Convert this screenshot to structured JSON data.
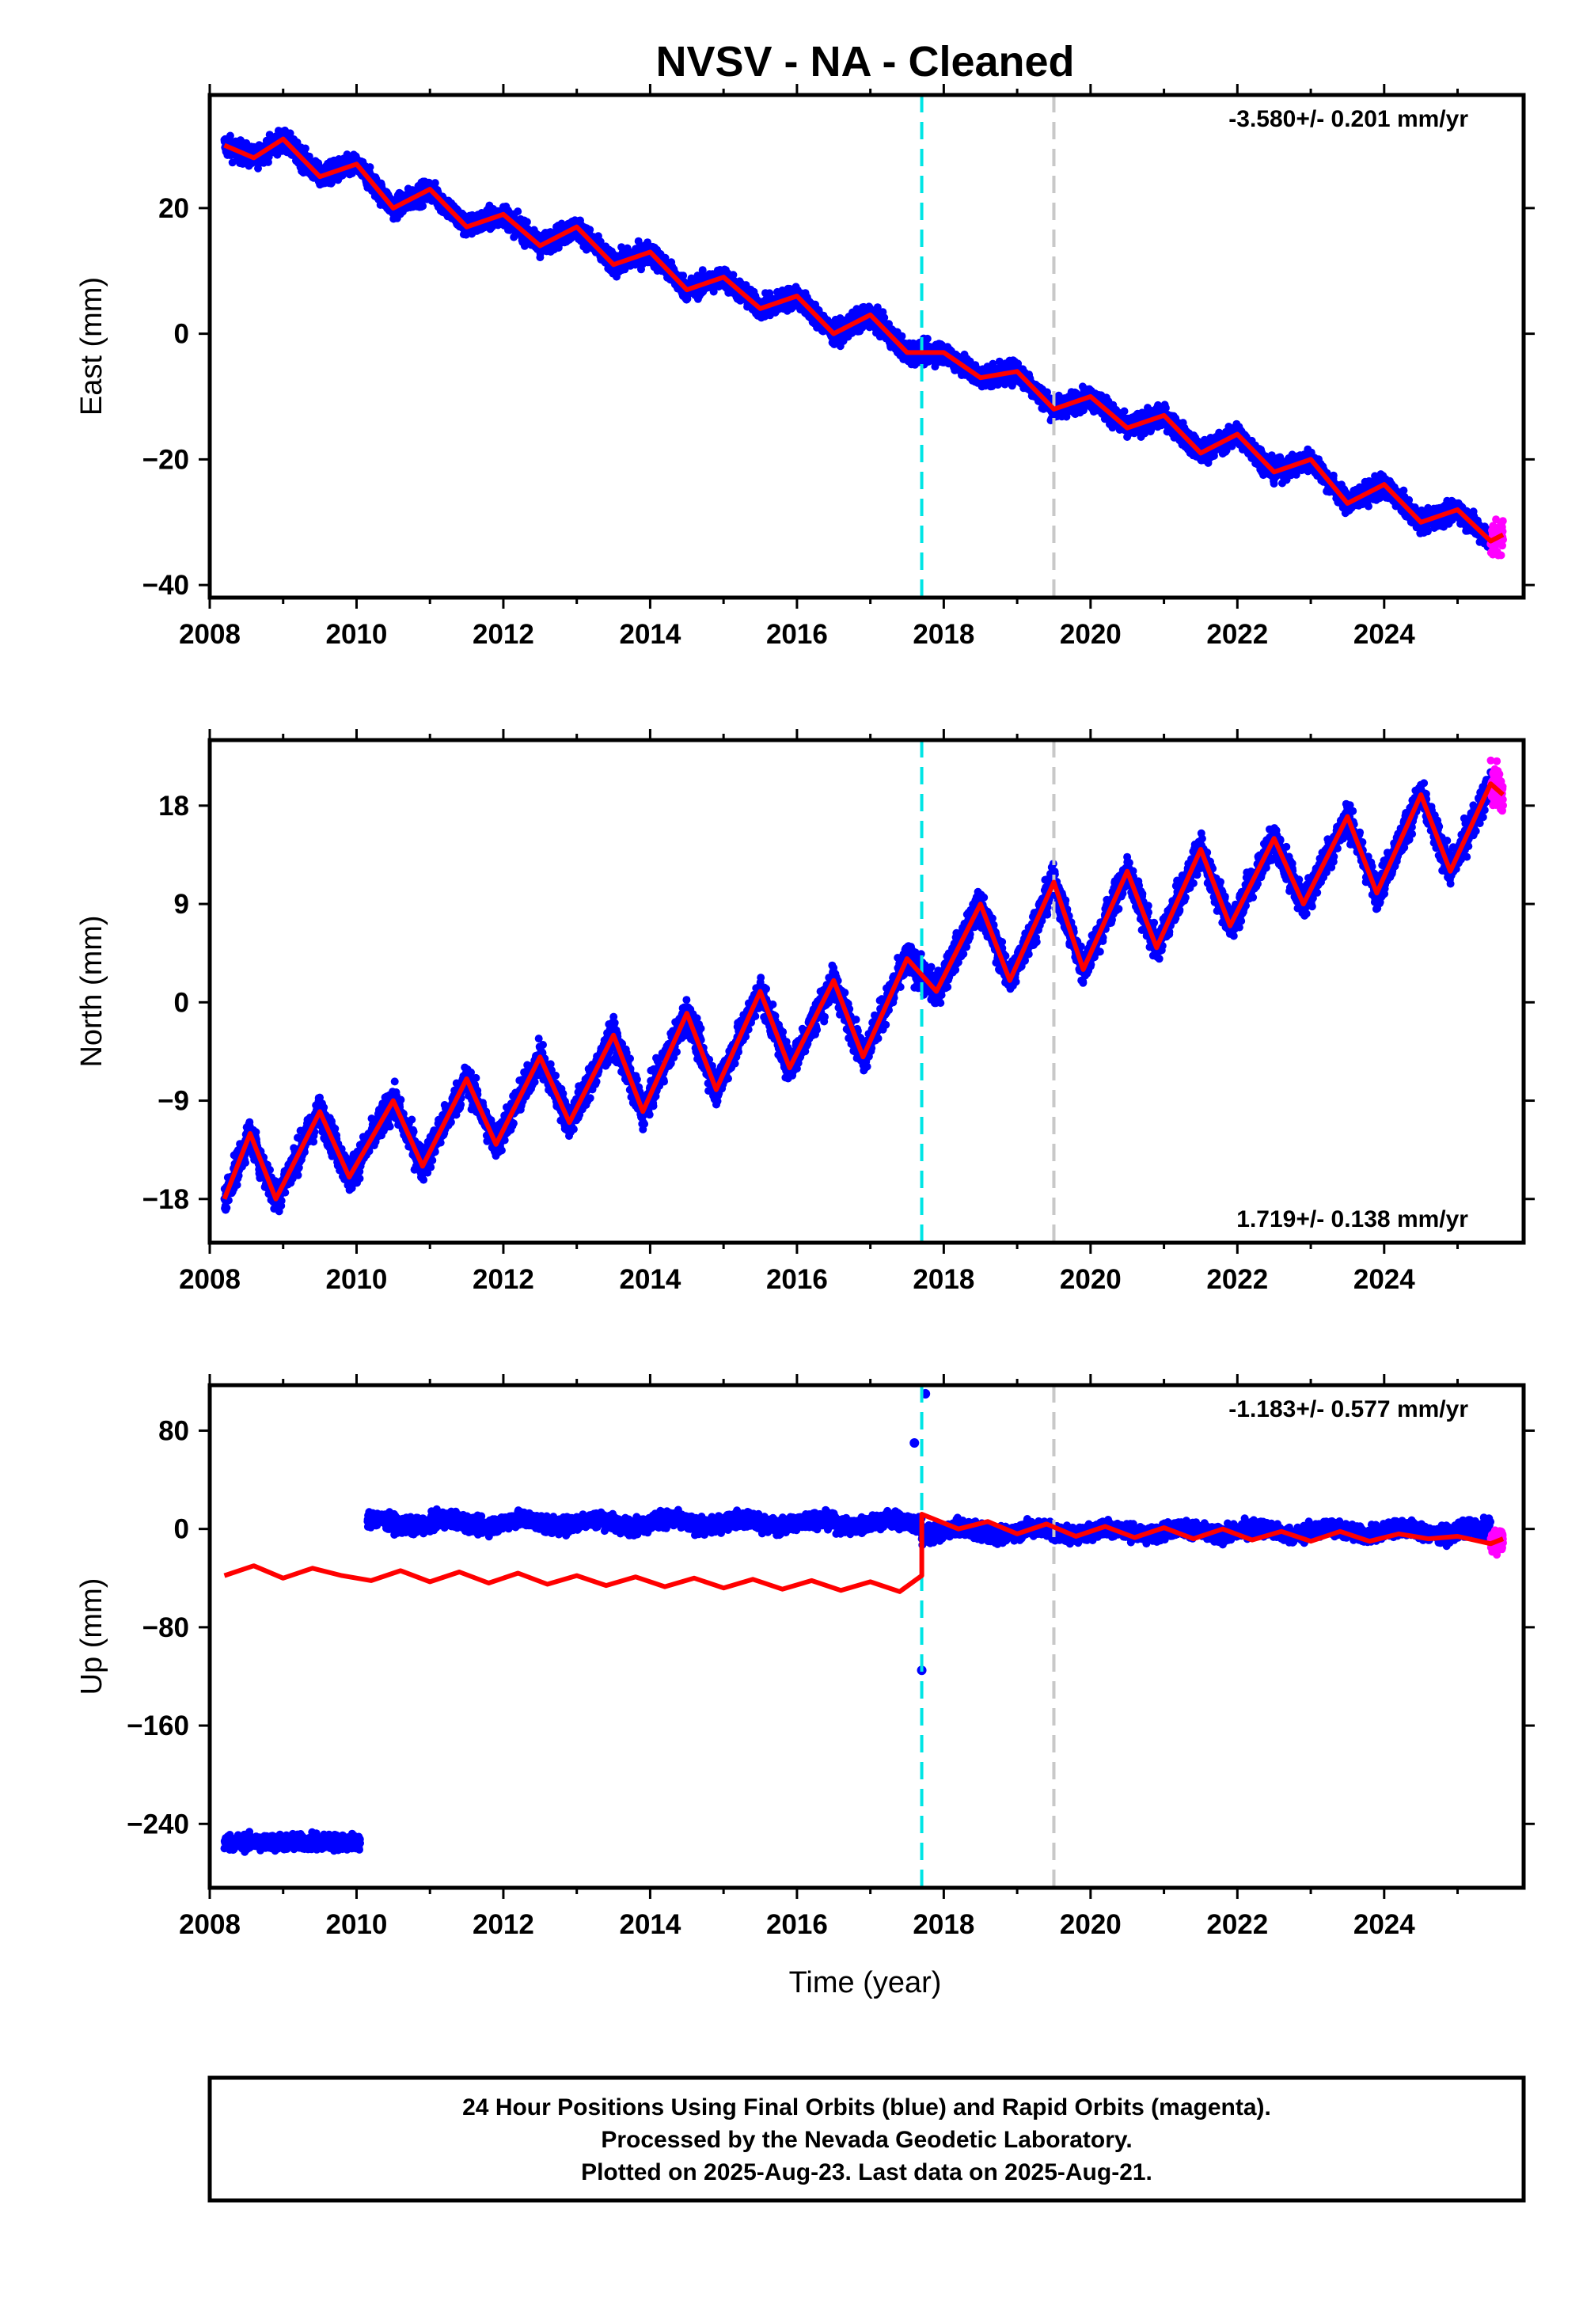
{
  "title": "NVSV  - NA - Cleaned",
  "colors": {
    "final_orbits": "#0000ff",
    "rapid_orbits": "#ff00ff",
    "model": "#ff0000",
    "event_line": "#00e5e5",
    "event_line_2": "#c8c8c8"
  },
  "xlabel": "Time (year)",
  "footer": {
    "line1": "24 Hour Positions Using Final Orbits (blue) and Rapid Orbits (magenta).",
    "line2": "Processed by the Nevada Geodetic Laboratory.",
    "line3": "Plotted on 2025-Aug-23. Last data on 2025-Aug-21."
  },
  "chart_data": [
    {
      "type": "scatter",
      "component": "East",
      "ylabel": "East (mm)",
      "rate_label": "-3.580+/- 0.201 mm/yr",
      "rate_position": "top-right",
      "xlim": [
        2008.0,
        2025.9
      ],
      "ylim": [
        -42,
        38
      ],
      "xticks": [
        2008,
        2010,
        2012,
        2014,
        2016,
        2018,
        2020,
        2022,
        2024
      ],
      "yticks": [
        -40,
        -20,
        0,
        20
      ],
      "vertical_lines": [
        {
          "x": 2017.7,
          "color": "cyan",
          "style": "dashed"
        },
        {
          "x": 2019.5,
          "color": "gray",
          "style": "dashed"
        }
      ],
      "series": [
        {
          "name": "Final Orbits",
          "data_range_x": [
            2008.2,
            2025.45
          ]
        },
        {
          "name": "Rapid Orbits",
          "data_range_x": [
            2025.45,
            2025.62
          ]
        },
        {
          "name": "model",
          "x": [
            2008.2,
            2008.6,
            2009.0,
            2009.5,
            2010.0,
            2010.5,
            2011.0,
            2011.5,
            2012.0,
            2012.5,
            2013.0,
            2013.5,
            2014.0,
            2014.5,
            2015.0,
            2015.5,
            2016.0,
            2016.5,
            2017.0,
            2017.5,
            2018.0,
            2018.5,
            2019.0,
            2019.5,
            2020.0,
            2020.5,
            2021.0,
            2021.5,
            2022.0,
            2022.5,
            2023.0,
            2023.5,
            2024.0,
            2024.5,
            2025.0,
            2025.45,
            2025.62
          ],
          "y": [
            30,
            28,
            31,
            25,
            27,
            20,
            23,
            17,
            19,
            14,
            17,
            11,
            13,
            7,
            9,
            4,
            6,
            0,
            3,
            -3,
            -3,
            -7,
            -6,
            -12,
            -10,
            -15,
            -13,
            -19,
            -16,
            -22,
            -20,
            -27,
            -24,
            -30,
            -28,
            -33,
            -32
          ]
        }
      ]
    },
    {
      "type": "scatter",
      "component": "North",
      "ylabel": "North (mm)",
      "rate_label": "1.719+/- 0.138 mm/yr",
      "rate_position": "bottom-right",
      "xlim": [
        2008.0,
        2025.9
      ],
      "ylim": [
        -22,
        24
      ],
      "xticks": [
        2008,
        2010,
        2012,
        2014,
        2016,
        2018,
        2020,
        2022,
        2024
      ],
      "yticks": [
        -18,
        -9,
        0,
        9,
        18
      ],
      "vertical_lines": [
        {
          "x": 2017.7,
          "color": "cyan",
          "style": "dashed"
        },
        {
          "x": 2019.5,
          "color": "gray",
          "style": "dashed"
        }
      ],
      "series": [
        {
          "name": "Final Orbits",
          "data_range_x": [
            2008.2,
            2025.45
          ]
        },
        {
          "name": "Rapid Orbits",
          "data_range_x": [
            2025.45,
            2025.62
          ]
        },
        {
          "name": "model",
          "x": [
            2008.2,
            2008.55,
            2008.9,
            2009.5,
            2009.9,
            2010.5,
            2010.9,
            2011.5,
            2011.9,
            2012.5,
            2012.9,
            2013.5,
            2013.9,
            2014.5,
            2014.9,
            2015.5,
            2015.9,
            2016.5,
            2016.9,
            2017.5,
            2017.9,
            2018.5,
            2018.9,
            2019.5,
            2019.9,
            2020.5,
            2020.9,
            2021.5,
            2021.9,
            2022.5,
            2022.9,
            2023.5,
            2023.9,
            2024.5,
            2024.9,
            2025.45,
            2025.62
          ],
          "y": [
            -18,
            -12,
            -18,
            -10,
            -16,
            -9,
            -15,
            -7,
            -13,
            -5,
            -11,
            -3,
            -10,
            -1,
            -8,
            1,
            -6,
            2,
            -5,
            4,
            1,
            9,
            2,
            11,
            3,
            12,
            5,
            14,
            7,
            15,
            9,
            17,
            10,
            19,
            12,
            20,
            19
          ]
        }
      ]
    },
    {
      "type": "scatter",
      "component": "Up",
      "ylabel": "Up (mm)",
      "rate_label": "-1.183+/- 0.577 mm/yr",
      "rate_position": "top-right",
      "xlim": [
        2008.0,
        2025.9
      ],
      "ylim": [
        -292,
        117
      ],
      "xticks": [
        2008,
        2010,
        2012,
        2014,
        2016,
        2018,
        2020,
        2022,
        2024
      ],
      "yticks": [
        -240,
        -160,
        -80,
        0,
        80
      ],
      "vertical_lines": [
        {
          "x": 2017.7,
          "color": "cyan",
          "style": "dashed"
        },
        {
          "x": 2019.5,
          "color": "gray",
          "style": "dashed"
        }
      ],
      "series": [
        {
          "name": "Final Orbits",
          "segments": [
            {
              "x_range": [
                2008.2,
                2010.05
              ],
              "y_center": -255
            },
            {
              "x_range": [
                2010.15,
                2017.7
              ],
              "y_center": 5
            },
            {
              "x_range": [
                2017.7,
                2025.45
              ],
              "y_center": -2
            }
          ],
          "outliers": [
            {
              "x": 2017.75,
              "y": 110
            },
            {
              "x": 2017.7,
              "y": -115
            },
            {
              "x": 2017.6,
              "y": 70
            }
          ]
        },
        {
          "name": "Rapid Orbits",
          "data_range_x": [
            2025.45,
            2025.62
          ]
        },
        {
          "name": "model",
          "x": [
            2008.2,
            2008.6,
            2009.0,
            2009.4,
            2009.8,
            2010.2,
            2010.6,
            2011.0,
            2011.4,
            2011.8,
            2012.2,
            2012.6,
            2013.0,
            2013.4,
            2013.8,
            2014.2,
            2014.6,
            2015.0,
            2015.4,
            2015.8,
            2016.2,
            2016.6,
            2017.0,
            2017.4,
            2017.7,
            2017.7,
            2018.2,
            2018.6,
            2019.0,
            2019.4,
            2019.8,
            2020.2,
            2020.6,
            2021.0,
            2021.4,
            2021.8,
            2022.2,
            2022.6,
            2023.0,
            2023.4,
            2023.8,
            2024.2,
            2024.6,
            2025.0,
            2025.45,
            2025.62
          ],
          "y": [
            -38,
            -30,
            -40,
            -32,
            -38,
            -42,
            -34,
            -43,
            -35,
            -44,
            -36,
            -45,
            -38,
            -46,
            -39,
            -47,
            -40,
            -48,
            -41,
            -49,
            -42,
            -50,
            -43,
            -51,
            -38,
            12,
            0,
            6,
            -4,
            4,
            -6,
            2,
            -7,
            1,
            -8,
            0,
            -9,
            -2,
            -10,
            -2,
            -10,
            -4,
            -8,
            -6,
            -12,
            -8
          ]
        }
      ]
    }
  ]
}
